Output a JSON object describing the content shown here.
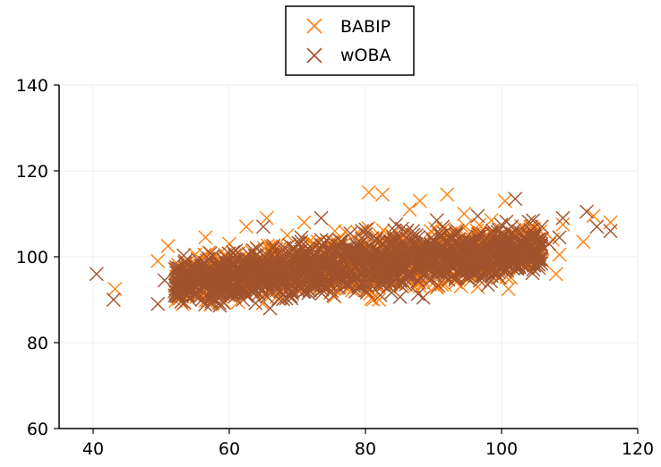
{
  "chart_data": {
    "type": "scatter",
    "title": "",
    "xlabel": "",
    "ylabel": "",
    "xlim": [
      35,
      120
    ],
    "ylim": [
      60,
      140
    ],
    "xticks": [
      40,
      60,
      80,
      100,
      120
    ],
    "yticks": [
      60,
      80,
      100,
      120,
      140
    ],
    "grid": true,
    "legend_position": "top-center",
    "marker": "x",
    "series": [
      {
        "name": "BABIP",
        "color": "#ff7f0e",
        "points": [
          [
            43.2,
            92.5
          ],
          [
            49.5,
            99.0
          ],
          [
            51.0,
            102.5
          ],
          [
            53.0,
            97.0
          ],
          [
            55.0,
            100.5
          ],
          [
            56.5,
            104.5
          ],
          [
            58.0,
            96.0
          ],
          [
            60.0,
            103.0
          ],
          [
            61.5,
            99.5
          ],
          [
            62.5,
            107.0
          ],
          [
            64.0,
            94.0
          ],
          [
            65.5,
            109.0
          ],
          [
            66.0,
            101.5
          ],
          [
            67.5,
            92.0
          ],
          [
            68.5,
            105.0
          ],
          [
            70.0,
            97.5
          ],
          [
            71.0,
            108.0
          ],
          [
            72.5,
            93.5
          ],
          [
            73.0,
            103.5
          ],
          [
            74.5,
            99.0
          ],
          [
            75.5,
            106.0
          ],
          [
            77.0,
            95.0
          ],
          [
            78.0,
            101.0
          ],
          [
            79.0,
            97.0
          ],
          [
            80.5,
            115.0
          ],
          [
            82.5,
            114.5
          ],
          [
            82.0,
            90.0
          ],
          [
            83.5,
            104.0
          ],
          [
            85.0,
            98.0
          ],
          [
            86.5,
            111.0
          ],
          [
            87.5,
            95.5
          ],
          [
            88.0,
            113.0
          ],
          [
            89.5,
            101.5
          ],
          [
            90.5,
            93.0
          ],
          [
            91.5,
            106.5
          ],
          [
            92.0,
            114.5
          ],
          [
            93.5,
            99.5
          ],
          [
            94.5,
            110.0
          ],
          [
            95.5,
            96.0
          ],
          [
            96.5,
            93.0
          ],
          [
            97.0,
            104.0
          ],
          [
            98.5,
            108.5
          ],
          [
            99.5,
            98.5
          ],
          [
            100.5,
            113.0
          ],
          [
            101.0,
            92.5
          ],
          [
            102.5,
            106.0
          ],
          [
            103.5,
            97.5
          ],
          [
            104.5,
            102.5
          ],
          [
            106.0,
            99.0
          ],
          [
            107.5,
            104.0
          ],
          [
            108.0,
            96.0
          ],
          [
            108.5,
            100.5
          ],
          [
            109.0,
            107.5
          ],
          [
            112.0,
            103.5
          ],
          [
            113.5,
            109.5
          ],
          [
            116.0,
            108.0
          ],
          [
            57.0,
            101.0
          ],
          [
            63.0,
            97.0
          ],
          [
            69.0,
            101.0
          ],
          [
            76.0,
            103.0
          ],
          [
            84.0,
            100.0
          ],
          [
            90.0,
            104.0
          ],
          [
            95.0,
            102.0
          ]
        ]
      },
      {
        "name": "wOBA",
        "color": "#a0522d",
        "points": [
          [
            40.5,
            96.0
          ],
          [
            43.0,
            90.0
          ],
          [
            49.5,
            89.0
          ],
          [
            50.5,
            94.5
          ],
          [
            52.0,
            91.0
          ],
          [
            53.5,
            98.5
          ],
          [
            55.0,
            93.0
          ],
          [
            56.0,
            90.0
          ],
          [
            57.5,
            95.5
          ],
          [
            59.0,
            99.5
          ],
          [
            60.5,
            93.5
          ],
          [
            61.5,
            97.0
          ],
          [
            62.0,
            90.0
          ],
          [
            63.5,
            101.5
          ],
          [
            64.5,
            96.0
          ],
          [
            65.0,
            107.0
          ],
          [
            66.0,
            88.0
          ],
          [
            67.0,
            99.0
          ],
          [
            68.0,
            94.0
          ],
          [
            69.5,
            102.0
          ],
          [
            70.5,
            97.5
          ],
          [
            71.5,
            92.5
          ],
          [
            72.5,
            100.0
          ],
          [
            73.5,
            109.0
          ],
          [
            74.0,
            95.5
          ],
          [
            75.0,
            98.5
          ],
          [
            76.5,
            103.5
          ],
          [
            77.5,
            93.0
          ],
          [
            78.5,
            101.5
          ],
          [
            79.5,
            106.0
          ],
          [
            80.5,
            96.0
          ],
          [
            81.5,
            99.5
          ],
          [
            82.5,
            103.0
          ],
          [
            83.5,
            94.5
          ],
          [
            84.5,
            107.5
          ],
          [
            85.5,
            98.0
          ],
          [
            86.5,
            101.0
          ],
          [
            87.5,
            105.0
          ],
          [
            88.5,
            90.5
          ],
          [
            89.5,
            100.0
          ],
          [
            90.5,
            108.5
          ],
          [
            91.5,
            96.5
          ],
          [
            92.5,
            102.5
          ],
          [
            93.5,
            106.0
          ],
          [
            94.5,
            98.5
          ],
          [
            95.5,
            103.0
          ],
          [
            96.5,
            109.5
          ],
          [
            97.5,
            100.5
          ],
          [
            98.5,
            96.5
          ],
          [
            99.5,
            104.0
          ],
          [
            100.5,
            101.0
          ],
          [
            101.5,
            107.0
          ],
          [
            102.0,
            113.5
          ],
          [
            103.0,
            98.0
          ],
          [
            104.0,
            103.5
          ],
          [
            105.5,
            100.5
          ],
          [
            107.0,
            103.0
          ],
          [
            108.5,
            104.5
          ],
          [
            109.0,
            109.0
          ],
          [
            112.5,
            110.5
          ],
          [
            114.0,
            107.0
          ],
          [
            116.0,
            106.0
          ]
        ]
      }
    ]
  }
}
